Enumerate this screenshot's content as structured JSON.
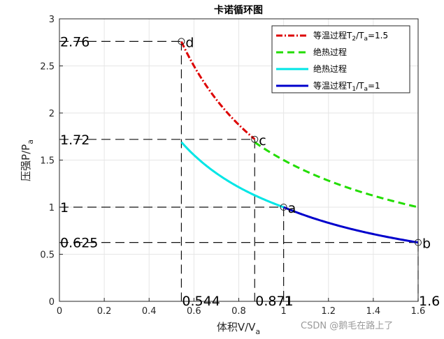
{
  "chart_data": {
    "type": "line",
    "title": "卡诺循环图",
    "xlabel": {
      "main": "体积V/V",
      "sub": "a"
    },
    "ylabel": {
      "main": "压强P/P",
      "sub": "a"
    },
    "xlim": [
      0,
      1.6
    ],
    "ylim": [
      0,
      3
    ],
    "xticks": [
      0,
      0.2,
      0.4,
      0.6,
      0.8,
      1,
      1.2,
      1.4,
      1.6
    ],
    "yticks": [
      0,
      0.5,
      1,
      1.5,
      2,
      2.5,
      3
    ],
    "xtick_labels": [
      "0",
      "0.2",
      "0.4",
      "0.6",
      "0.8",
      "1",
      "1.2",
      "1.4",
      "1.6"
    ],
    "ytick_labels": [
      "0",
      "0.5",
      "1",
      "1.5",
      "2",
      "2.5",
      "3"
    ],
    "grid": true,
    "legend_position": "top-right",
    "series": [
      {
        "name": "等温过程T2/Ta=1.5",
        "legend_parts": [
          "等温过程T",
          "2",
          "/T",
          "a",
          "=1.5"
        ],
        "color": "#dd0000",
        "style": "dash-dot",
        "curve": "isotherm",
        "constant": 1.5,
        "v_range": [
          0.544,
          0.871
        ]
      },
      {
        "name": "绝热过程",
        "legend_parts": [
          "绝热过程"
        ],
        "color": "#22dd00",
        "style": "dashed",
        "curve": "adiabat",
        "constant": 1.5,
        "v_range": [
          0.871,
          1.6
        ]
      },
      {
        "name": "绝热过程",
        "legend_parts": [
          "绝热过程"
        ],
        "color": "#00e6e6",
        "style": "solid",
        "curve": "adiabat",
        "constant": 1,
        "v_range": [
          0.544,
          1
        ]
      },
      {
        "name": "等温过程T1/Ta=1",
        "legend_parts": [
          "等温过程T",
          "1",
          "/T",
          "a",
          "=1"
        ],
        "color": "#0000cc",
        "style": "solid",
        "curve": "isotherm",
        "constant": 1,
        "v_range": [
          1,
          1.6
        ]
      }
    ],
    "points": [
      {
        "label": "a",
        "v": 1,
        "p": 1
      },
      {
        "label": "b",
        "v": 1.6,
        "p": 0.625
      },
      {
        "label": "c",
        "v": 0.871,
        "p": 1.72
      },
      {
        "label": "d",
        "v": 0.544,
        "p": 2.76
      }
    ],
    "p_annotations": [
      {
        "text": "2.76",
        "p": 2.76
      },
      {
        "text": "1.72",
        "p": 1.72
      },
      {
        "text": "1",
        "p": 1
      },
      {
        "text": "0.625",
        "p": 0.625
      }
    ],
    "v_annotations": [
      {
        "text": "0.544",
        "v": 0.544
      },
      {
        "text": "0.871",
        "v": 0.871
      },
      {
        "text": "1",
        "v": 1
      },
      {
        "text": "1.6",
        "v": 1.6
      }
    ]
  },
  "watermark": "CSDN @鹅毛在路上了"
}
